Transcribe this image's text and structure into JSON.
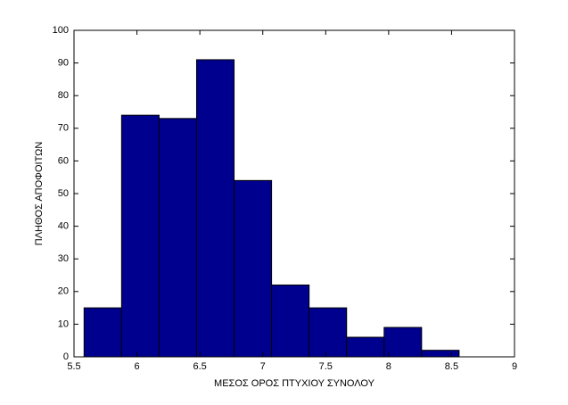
{
  "chart_data": {
    "type": "histogram",
    "xlabel": "ΜΕΣΟΣ ΟΡΟΣ ΠΤΥΧΙΟΥ ΣΥΝΟΛΟΥ",
    "ylabel": "ΠΛΗΘΟΣ ΑΠΟΦΟΙΤΩΝ",
    "bins": [
      5.58,
      5.878,
      6.176,
      6.474,
      6.772,
      7.07,
      7.368,
      7.666,
      7.964,
      8.262,
      8.56
    ],
    "values": [
      15,
      74,
      73,
      91,
      54,
      22,
      15,
      6,
      9,
      2
    ],
    "color": "#00008f",
    "xlim": [
      5.5,
      9
    ],
    "xticks": [
      5.5,
      6,
      6.5,
      7,
      7.5,
      8,
      8.5,
      9
    ],
    "ylim": [
      0,
      100
    ],
    "yticks": [
      0,
      10,
      20,
      30,
      40,
      50,
      60,
      70,
      80,
      90,
      100
    ]
  }
}
